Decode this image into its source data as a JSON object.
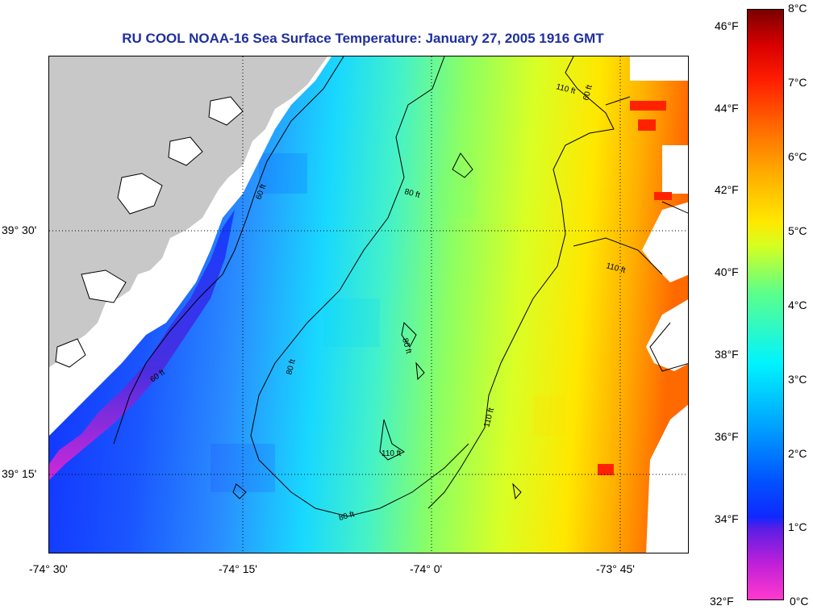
{
  "title": "RU COOL  NOAA-16  Sea Surface Temperature:  January 27, 2005 1916 GMT",
  "longitude_ticks": [
    "-74° 30'",
    "-74° 15'",
    "-74° 0'",
    "-73° 45'"
  ],
  "latitude_ticks": [
    "39° 30'",
    "39° 15'"
  ],
  "contours": [
    {
      "label": "60 ft"
    },
    {
      "label": "80 ft"
    },
    {
      "label": "110 ft"
    }
  ],
  "colorbar": {
    "fahrenheit": [
      "46°F",
      "44°F",
      "42°F",
      "40°F",
      "38°F",
      "36°F",
      "34°F",
      "32°F"
    ],
    "celsius": [
      "8°C",
      "7°C",
      "6°C",
      "5°C",
      "4°C",
      "3°C",
      "2°C",
      "1°C",
      "0°C"
    ]
  },
  "colors": {
    "land": "#c8c8c8",
    "coast_fill": "#ffffff",
    "no_data": "#ffffff",
    "title": "#1f2f9f",
    "cold": "#0a3cff",
    "mid": "#00e6ff",
    "warm": "#ffe000"
  }
}
